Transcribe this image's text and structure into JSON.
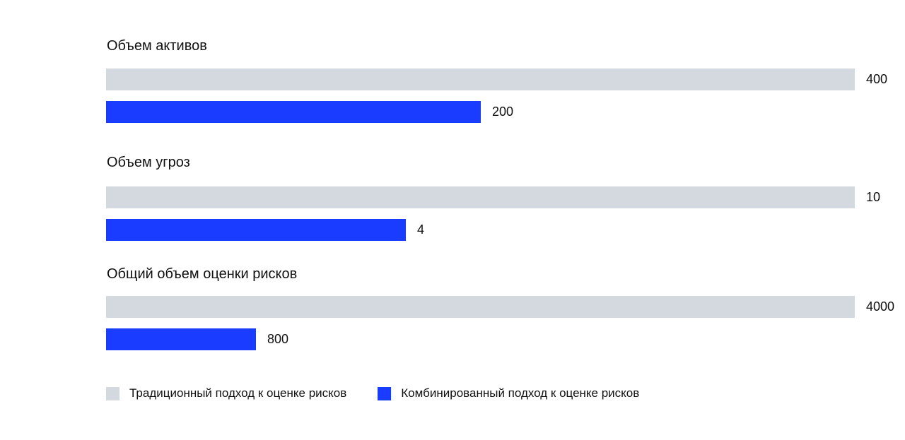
{
  "chart_data": {
    "type": "bar",
    "orientation": "horizontal",
    "groups": [
      {
        "title": "Объем активов",
        "values": [
          400,
          200
        ],
        "labels": [
          "400",
          "200"
        ]
      },
      {
        "title": "Объем угроз",
        "values": [
          10,
          4
        ],
        "labels": [
          "10",
          "4"
        ]
      },
      {
        "title": "Общий объем оценки рисков",
        "values": [
          4000,
          800
        ],
        "labels": [
          "4000",
          "800"
        ]
      }
    ],
    "series": [
      {
        "name": "Традиционный подход к оценке рисков",
        "color": "#d4d8df"
      },
      {
        "name": "Комбинированный подход к оценке рисков",
        "color": "#1a3cff"
      }
    ],
    "scale_note": "each group scaled independently to its traditional value",
    "legend": "bottom-left",
    "grid": false
  }
}
